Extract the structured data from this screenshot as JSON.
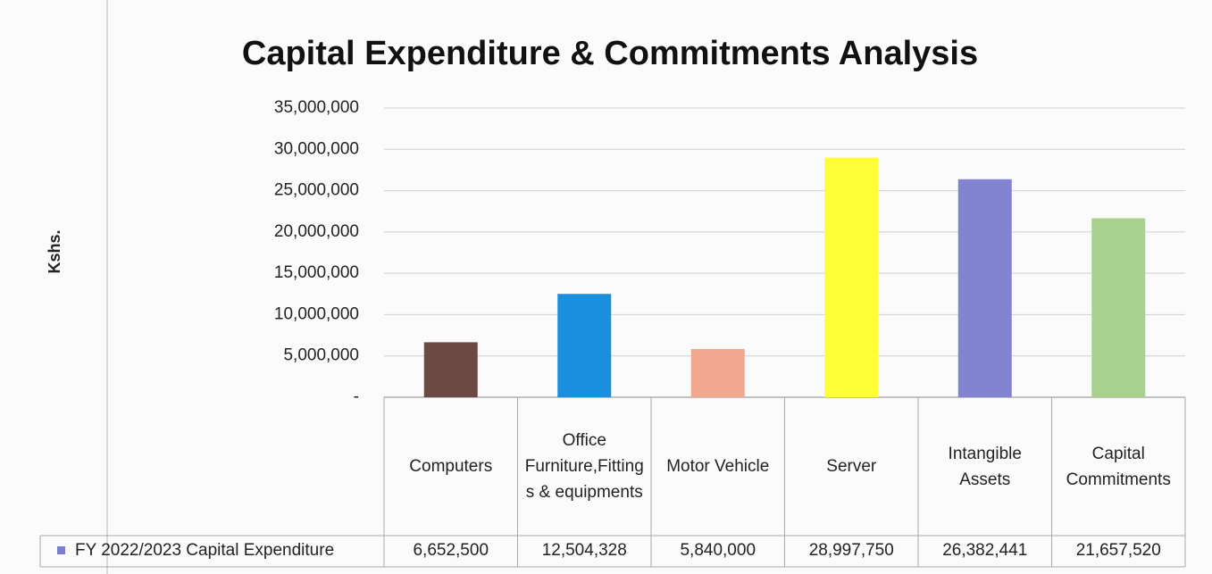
{
  "chart_data": {
    "type": "bar",
    "title": "Capital Expenditure & Commitments Analysis",
    "y_label": "Kshs.",
    "categories": [
      "Computers",
      "Office Furniture,Fittings & equipments",
      "Motor Vehicle",
      "Server",
      "Intangible Assets",
      "Capital Commitments"
    ],
    "series": [
      {
        "name": "FY 2022/2023 Capital Expenditure",
        "color": "#7b7fd0",
        "colors": [
          "#6b4a44",
          "#1b8fde",
          "#f2a88f",
          "#ffff38",
          "#8384d1",
          "#a9d18e"
        ],
        "values": [
          6652500,
          12504328,
          5840000,
          28997750,
          26382441,
          21657520
        ],
        "value_labels": [
          "6,652,500",
          "12,504,328",
          "5,840,000",
          "28,997,750",
          "26,382,441",
          "21,657,520"
        ]
      }
    ],
    "ylim": [
      0,
      35000000
    ],
    "yticks": [
      {
        "value": 0,
        "label": "-"
      },
      {
        "value": 5000000,
        "label": "5,000,000"
      },
      {
        "value": 10000000,
        "label": "10,000,000"
      },
      {
        "value": 15000000,
        "label": "15,000,000"
      },
      {
        "value": 20000000,
        "label": "20,000,000"
      },
      {
        "value": 25000000,
        "label": "25,000,000"
      },
      {
        "value": 30000000,
        "label": "30,000,000"
      },
      {
        "value": 35000000,
        "label": "35,000,000"
      }
    ],
    "grid": true
  }
}
